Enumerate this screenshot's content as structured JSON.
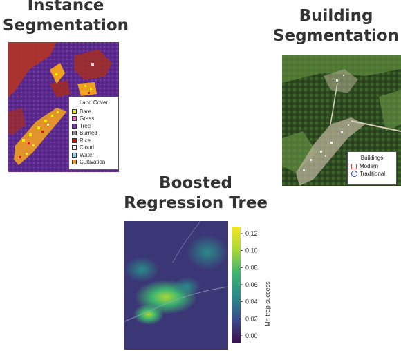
{
  "titles": {
    "instance": "Instance Segmentation",
    "instance_lines": [
      "Instance",
      "Segmentation"
    ],
    "building_lines": [
      "Building",
      "Segmentation"
    ],
    "brt_lines": [
      "Boosted",
      "Regression Tree"
    ]
  },
  "land_cover_legend": {
    "title": "Land Cover",
    "items": [
      {
        "label": "Bare",
        "color": "#f5f000"
      },
      {
        "label": "Grass",
        "color": "#ff66cc"
      },
      {
        "label": "Tree",
        "color": "#7b2fbe"
      },
      {
        "label": "Burned",
        "color": "#8c8c8c"
      },
      {
        "label": "Rice",
        "color": "#e01010"
      },
      {
        "label": "Cloud",
        "color": "#ffffff"
      },
      {
        "label": "Water",
        "color": "#7fd3f0"
      },
      {
        "label": "Cultivation",
        "color": "#f0a020"
      }
    ]
  },
  "buildings_legend": {
    "title": "Buildings",
    "items": [
      {
        "label": "Modern",
        "marker": "square-icon",
        "color": "#e04a3a"
      },
      {
        "label": "Traditional",
        "marker": "circle-icon",
        "color": "#2a3fbf"
      }
    ]
  },
  "colorbar": {
    "label": "Mn trap success",
    "ticks": [
      "0.12",
      "0.10",
      "0.08",
      "0.06",
      "0.04",
      "0.02",
      "0.00"
    ],
    "tick_values": [
      0.12,
      0.1,
      0.08,
      0.06,
      0.04,
      0.02,
      0.0
    ],
    "range": [
      -0.008,
      0.128
    ],
    "colors": [
      "#3b0f4f",
      "#3b4b8c",
      "#2a8a8a",
      "#3cb46e",
      "#a8d83a",
      "#f5e61d"
    ]
  }
}
